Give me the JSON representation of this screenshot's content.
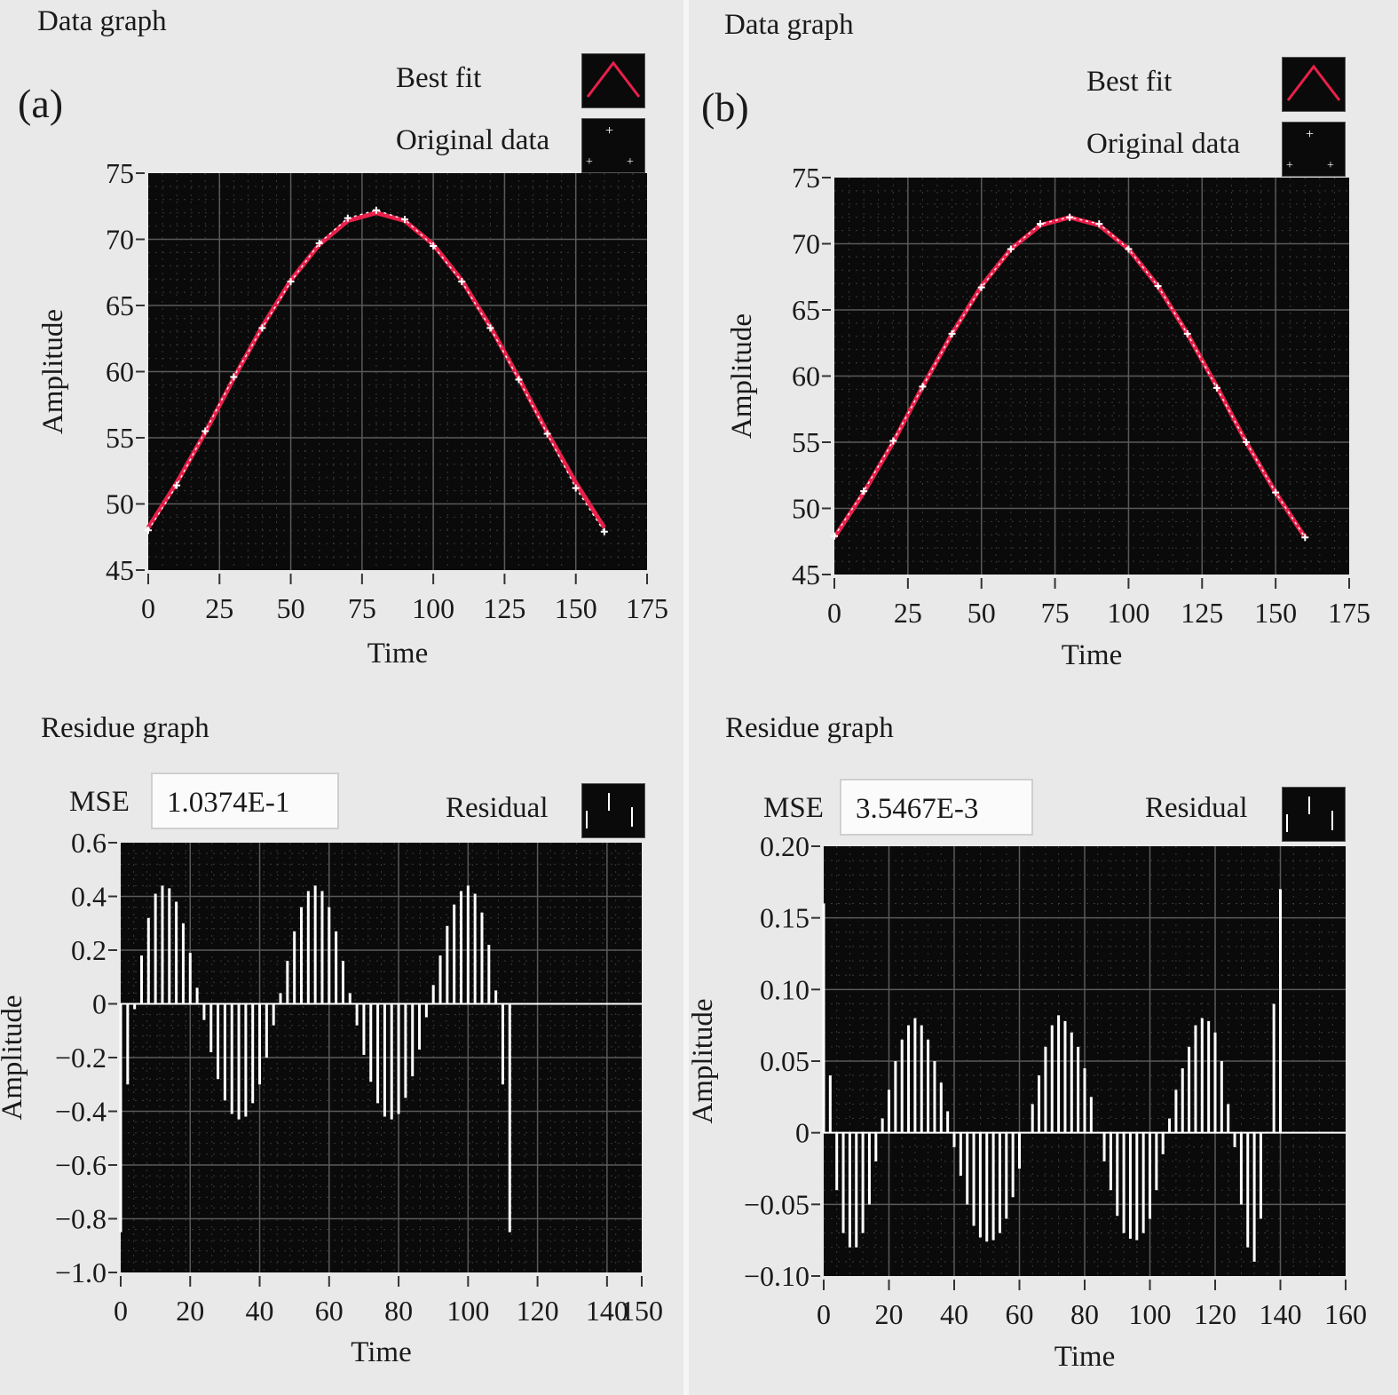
{
  "panel_a": {
    "letter": "(a)",
    "data_title": "Data graph",
    "legend_fit": "Best fit",
    "legend_orig": "Original data",
    "residue_title": "Residue graph",
    "mse_label": "MSE",
    "mse_value": "1.0374E-1",
    "legend_resid": "Residual"
  },
  "panel_b": {
    "letter": "(b)",
    "data_title": "Data graph",
    "legend_fit": "Best fit",
    "legend_orig": "Original data",
    "residue_title": "Residue graph",
    "mse_label": "MSE",
    "mse_value": "3.5467E-3",
    "legend_resid": "Residual"
  },
  "colors": {
    "plot_bg": "#0a0a0a",
    "grid": "#5a5a5a",
    "best_fit": "#e8204a",
    "original_data": "#ffffff",
    "residual": "#ffffff",
    "page_bg": "#e9e9e9"
  },
  "chart_data": [
    {
      "id": "a-data",
      "type": "line",
      "xlabel": "Time",
      "ylabel": "Amplitude",
      "xlim": [
        0,
        175
      ],
      "ylim": [
        45,
        75
      ],
      "xticks": [
        "0",
        "25",
        "50",
        "75",
        "100",
        "125",
        "150",
        "175"
      ],
      "yticks": [
        "45",
        "50",
        "55",
        "60",
        "65",
        "70",
        "75"
      ],
      "grid": true,
      "legend_position": "top-right",
      "series": [
        {
          "name": "Best fit",
          "style": "line",
          "color": "#e8204a",
          "x": [
            0,
            10,
            20,
            30,
            40,
            50,
            60,
            70,
            80,
            90,
            100,
            110,
            120,
            130,
            140,
            150,
            160
          ],
          "y": [
            48.2,
            51.6,
            55.4,
            59.5,
            63.4,
            66.9,
            69.6,
            71.4,
            72.0,
            71.4,
            69.6,
            66.9,
            63.4,
            59.5,
            55.4,
            51.6,
            48.2
          ]
        },
        {
          "name": "Original data",
          "style": "markers",
          "color": "#ffffff",
          "x": [
            0,
            10,
            20,
            30,
            40,
            50,
            60,
            70,
            80,
            90,
            100,
            110,
            120,
            130,
            140,
            150,
            160
          ],
          "y": [
            48.0,
            51.4,
            55.5,
            59.6,
            63.3,
            66.8,
            69.7,
            71.6,
            72.2,
            71.5,
            69.5,
            66.8,
            63.3,
            59.4,
            55.3,
            51.2,
            47.9
          ]
        }
      ]
    },
    {
      "id": "a-resid",
      "type": "bar",
      "xlabel": "Time",
      "ylabel": "Amplitude",
      "xlim": [
        0,
        150
      ],
      "ylim": [
        -1.0,
        0.6
      ],
      "xticks": [
        "0",
        "20",
        "40",
        "60",
        "80",
        "100",
        "120",
        "140",
        "150"
      ],
      "yticks": [
        "−1.0",
        "−0.8",
        "−0.6",
        "−0.4",
        "−0.2",
        "0",
        "0.2",
        "0.4",
        "0.6"
      ],
      "grid": true,
      "legend_position": "top-right",
      "series": [
        {
          "name": "Residual",
          "color": "#ffffff",
          "x": [
            0,
            2,
            4,
            6,
            8,
            10,
            12,
            14,
            16,
            18,
            20,
            22,
            24,
            26,
            28,
            30,
            32,
            34,
            36,
            38,
            40,
            42,
            44,
            46,
            48,
            50,
            52,
            54,
            56,
            58,
            60,
            62,
            64,
            66,
            68,
            70,
            72,
            74,
            76,
            78,
            80,
            82,
            84,
            86,
            88,
            90,
            92,
            94,
            96,
            98,
            100,
            102,
            104,
            106,
            108,
            110,
            112,
            114,
            116,
            118,
            120,
            122,
            124,
            126,
            128,
            130,
            132,
            134,
            136,
            138,
            140,
            142,
            144,
            146,
            148,
            150
          ],
          "y": [
            -0.85,
            -0.3,
            -0.02,
            0.18,
            0.32,
            0.41,
            0.44,
            0.43,
            0.38,
            0.3,
            0.19,
            0.06,
            -0.06,
            -0.18,
            -0.28,
            -0.36,
            -0.41,
            -0.43,
            -0.42,
            -0.37,
            -0.3,
            -0.2,
            -0.08,
            0.04,
            0.16,
            0.27,
            0.36,
            0.42,
            0.44,
            0.42,
            0.36,
            0.27,
            0.16,
            0.04,
            -0.08,
            -0.19,
            -0.29,
            -0.37,
            -0.42,
            -0.43,
            -0.41,
            -0.35,
            -0.27,
            -0.17,
            -0.05,
            0.07,
            0.18,
            0.29,
            0.37,
            0.42,
            0.44,
            0.41,
            0.34,
            0.22,
            0.05,
            -0.3,
            -0.85,
            0,
            0,
            0,
            0,
            0,
            0,
            0,
            0,
            0,
            0,
            0,
            0,
            0,
            0,
            0,
            0,
            0,
            0,
            0
          ]
        }
      ]
    },
    {
      "id": "b-data",
      "type": "line",
      "xlabel": "Time",
      "ylabel": "Amplitude",
      "xlim": [
        0,
        175
      ],
      "ylim": [
        45,
        75
      ],
      "xticks": [
        "0",
        "25",
        "50",
        "75",
        "100",
        "125",
        "150",
        "175"
      ],
      "yticks": [
        "45",
        "50",
        "55",
        "60",
        "65",
        "70",
        "75"
      ],
      "grid": true,
      "legend_position": "top-right",
      "series": [
        {
          "name": "Best fit",
          "style": "line",
          "color": "#e8204a",
          "x": [
            0,
            10,
            20,
            30,
            40,
            50,
            60,
            70,
            80,
            90,
            100,
            110,
            120,
            130,
            140,
            150,
            160
          ],
          "y": [
            47.8,
            51.2,
            55.0,
            59.2,
            63.2,
            66.8,
            69.6,
            71.4,
            72.0,
            71.4,
            69.6,
            66.8,
            63.2,
            59.2,
            55.0,
            51.2,
            47.8
          ]
        },
        {
          "name": "Original data",
          "style": "markers",
          "color": "#ffffff",
          "x": [
            0,
            10,
            20,
            30,
            40,
            50,
            60,
            70,
            80,
            90,
            100,
            110,
            120,
            130,
            140,
            150,
            160
          ],
          "y": [
            47.9,
            51.3,
            55.1,
            59.2,
            63.2,
            66.7,
            69.6,
            71.5,
            72.0,
            71.5,
            69.6,
            66.8,
            63.2,
            59.1,
            55.0,
            51.2,
            47.8
          ]
        }
      ]
    },
    {
      "id": "b-resid",
      "type": "bar",
      "xlabel": "Time",
      "ylabel": "Amplitude",
      "xlim": [
        0,
        160
      ],
      "ylim": [
        -0.1,
        0.2
      ],
      "xticks": [
        "0",
        "20",
        "40",
        "60",
        "80",
        "100",
        "120",
        "140",
        "160"
      ],
      "yticks": [
        "−0.10",
        "−0.05",
        "0",
        "0.05",
        "0.10",
        "0.15",
        "0.20"
      ],
      "grid": true,
      "legend_position": "top-right",
      "series": [
        {
          "name": "Residual",
          "color": "#ffffff",
          "x": [
            0,
            2,
            4,
            6,
            8,
            10,
            12,
            14,
            16,
            18,
            20,
            22,
            24,
            26,
            28,
            30,
            32,
            34,
            36,
            38,
            40,
            42,
            44,
            46,
            48,
            50,
            52,
            54,
            56,
            58,
            60,
            62,
            64,
            66,
            68,
            70,
            72,
            74,
            76,
            78,
            80,
            82,
            84,
            86,
            88,
            90,
            92,
            94,
            96,
            98,
            100,
            102,
            104,
            106,
            108,
            110,
            112,
            114,
            116,
            118,
            120,
            122,
            124,
            126,
            128,
            130,
            132,
            134,
            136,
            138,
            140,
            142,
            144,
            146,
            148,
            150,
            152,
            154,
            156,
            158,
            160
          ],
          "y": [
            0.16,
            0.04,
            -0.04,
            -0.07,
            -0.08,
            -0.08,
            -0.07,
            -0.05,
            -0.02,
            0.01,
            0.03,
            0.05,
            0.065,
            0.075,
            0.08,
            0.075,
            0.065,
            0.05,
            0.035,
            0.015,
            -0.01,
            -0.03,
            -0.05,
            -0.065,
            -0.073,
            -0.076,
            -0.075,
            -0.07,
            -0.06,
            -0.045,
            -0.025,
            0.0,
            0.02,
            0.04,
            0.06,
            0.075,
            0.082,
            0.078,
            0.07,
            0.06,
            0.045,
            0.025,
            0.0,
            -0.02,
            -0.04,
            -0.058,
            -0.07,
            -0.074,
            -0.075,
            -0.07,
            -0.06,
            -0.04,
            -0.015,
            0.01,
            0.03,
            0.045,
            0.06,
            0.075,
            0.08,
            0.078,
            0.07,
            0.05,
            0.02,
            -0.01,
            -0.05,
            -0.08,
            -0.09,
            -0.06,
            0.0,
            0.09,
            0.17,
            0,
            0,
            0,
            0,
            0,
            0,
            0,
            0,
            0,
            0
          ]
        }
      ]
    }
  ]
}
